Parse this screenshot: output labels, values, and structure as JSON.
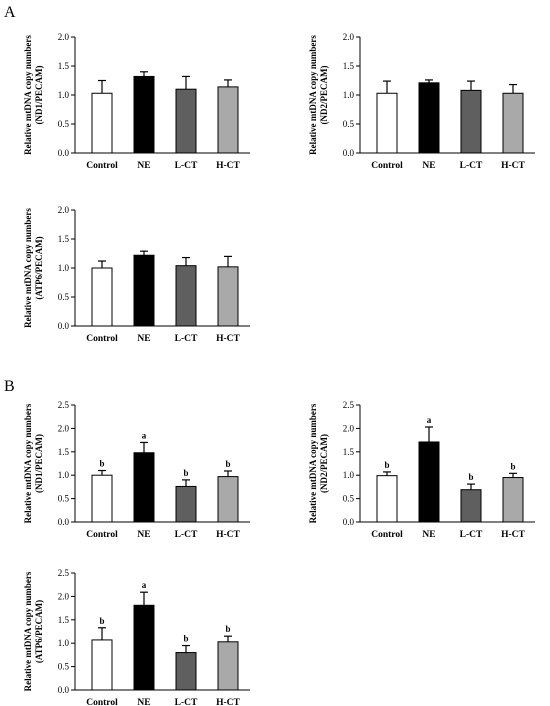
{
  "panels": [
    {
      "id": "A",
      "label": "A"
    },
    {
      "id": "B",
      "label": "B"
    }
  ],
  "chart_data": [
    {
      "panel": "A",
      "type": "bar",
      "categories": [
        "Control",
        "NE",
        "L-CT",
        "H-CT"
      ],
      "values": [
        1.03,
        1.32,
        1.1,
        1.14
      ],
      "errors": [
        0.22,
        0.08,
        0.22,
        0.12
      ],
      "colors": [
        "#ffffff",
        "#000000",
        "#5f5f5f",
        "#a9a9a9"
      ],
      "ylabel": [
        "Relative mtDNA copy numbers",
        "(ND1/PECAM)"
      ],
      "ylim": [
        0,
        2.0
      ],
      "yticks": [
        "0.0",
        "0.5",
        "1.0",
        "1.5",
        "2.0"
      ],
      "significance": []
    },
    {
      "panel": "A",
      "type": "bar",
      "categories": [
        "Control",
        "NE",
        "L-CT",
        "H-CT"
      ],
      "values": [
        1.03,
        1.21,
        1.08,
        1.03
      ],
      "errors": [
        0.21,
        0.05,
        0.16,
        0.15
      ],
      "colors": [
        "#ffffff",
        "#000000",
        "#5f5f5f",
        "#a9a9a9"
      ],
      "ylabel": [
        "Relative mtDNA copy numbers",
        "(ND2/PECAM)"
      ],
      "ylim": [
        0,
        2.0
      ],
      "yticks": [
        "0.0",
        "0.5",
        "1.0",
        "1.5",
        "2.0"
      ],
      "significance": []
    },
    {
      "panel": "A",
      "type": "bar",
      "categories": [
        "Control",
        "NE",
        "L-CT",
        "H-CT"
      ],
      "values": [
        1.0,
        1.22,
        1.04,
        1.02
      ],
      "errors": [
        0.12,
        0.07,
        0.14,
        0.18
      ],
      "colors": [
        "#ffffff",
        "#000000",
        "#5f5f5f",
        "#a9a9a9"
      ],
      "ylabel": [
        "Relative mtDNA copy numbers",
        "(ATP6/PECAM)"
      ],
      "ylim": [
        0,
        2.0
      ],
      "yticks": [
        "0.0",
        "0.5",
        "1.0",
        "1.5",
        "2.0"
      ],
      "significance": []
    },
    {
      "panel": "B",
      "type": "bar",
      "categories": [
        "Control",
        "NE",
        "L-CT",
        "H-CT"
      ],
      "values": [
        1.0,
        1.48,
        0.76,
        0.97
      ],
      "errors": [
        0.1,
        0.22,
        0.14,
        0.12
      ],
      "colors": [
        "#ffffff",
        "#000000",
        "#5f5f5f",
        "#a9a9a9"
      ],
      "ylabel": [
        "Relative mtDNA copy numbers",
        "(ND1/PECAM)"
      ],
      "ylim": [
        0,
        2.5
      ],
      "yticks": [
        "0.0",
        "0.5",
        "1.0",
        "1.5",
        "2.0",
        "2.5"
      ],
      "significance": [
        "b",
        "a",
        "b",
        "b"
      ]
    },
    {
      "panel": "B",
      "type": "bar",
      "categories": [
        "Control",
        "NE",
        "L-CT",
        "H-CT"
      ],
      "values": [
        0.99,
        1.71,
        0.69,
        0.95
      ],
      "errors": [
        0.08,
        0.32,
        0.12,
        0.09
      ],
      "colors": [
        "#ffffff",
        "#000000",
        "#5f5f5f",
        "#a9a9a9"
      ],
      "ylabel": [
        "Relative mtDNA copy numbers",
        "(ND2/PECAM)"
      ],
      "ylim": [
        0,
        2.5
      ],
      "yticks": [
        "0.0",
        "0.5",
        "1.0",
        "1.5",
        "2.0",
        "2.5"
      ],
      "significance": [
        "b",
        "a",
        "b",
        "b"
      ]
    },
    {
      "panel": "B",
      "type": "bar",
      "categories": [
        "Control",
        "NE",
        "L-CT",
        "H-CT"
      ],
      "values": [
        1.07,
        1.81,
        0.8,
        1.03
      ],
      "errors": [
        0.26,
        0.28,
        0.15,
        0.12
      ],
      "colors": [
        "#ffffff",
        "#000000",
        "#5f5f5f",
        "#a9a9a9"
      ],
      "ylabel": [
        "Relative mtDNA copy numbers",
        "(ATP6/PECAM)"
      ],
      "ylim": [
        0,
        2.5
      ],
      "yticks": [
        "0.0",
        "0.5",
        "1.0",
        "1.5",
        "2.0",
        "2.5"
      ],
      "significance": [
        "b",
        "a",
        "b",
        "b"
      ]
    }
  ]
}
